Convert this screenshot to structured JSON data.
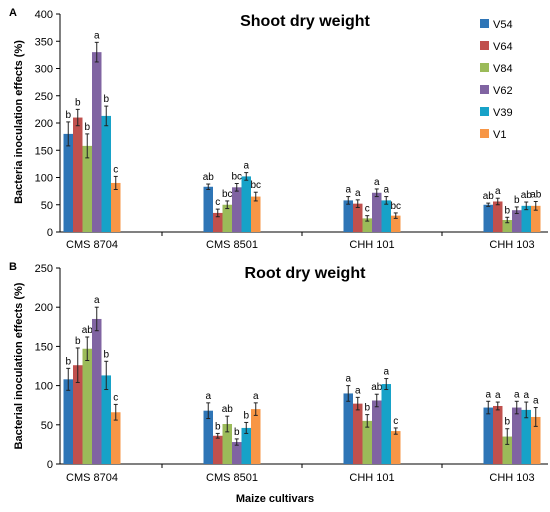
{
  "figure": {
    "shared_xlabel": "Maize cultivars"
  },
  "chart_data": [
    {
      "panel_label": "A",
      "type": "bar",
      "title": "Shoot dry weight",
      "xlabel": "",
      "ylabel": "Bacteria inoculation effects (%)",
      "ylim": [
        0,
        400
      ],
      "yticks": [
        0,
        50,
        100,
        150,
        200,
        250,
        300,
        350,
        400
      ],
      "grid": false,
      "legend": "right",
      "categories": [
        "CMS 8704",
        "CMS 8501",
        "CHH 101",
        "CHH 103"
      ],
      "series": [
        {
          "name": "V54",
          "color": "#2e75b6",
          "values": [
            180,
            83,
            58,
            50
          ],
          "errors": [
            22,
            5,
            7,
            3
          ],
          "labels": [
            "b",
            "ab",
            "a",
            "ab"
          ]
        },
        {
          "name": "V64",
          "color": "#c0504d",
          "values": [
            210,
            35,
            52,
            56
          ],
          "errors": [
            15,
            7,
            7,
            6
          ],
          "labels": [
            "b",
            "c",
            "a",
            "a"
          ]
        },
        {
          "name": "V84",
          "color": "#9bbb59",
          "values": [
            158,
            50,
            25,
            22
          ],
          "errors": [
            22,
            7,
            5,
            5
          ],
          "labels": [
            "b",
            "bc",
            "c",
            "b"
          ]
        },
        {
          "name": "V62",
          "color": "#8064a2",
          "values": [
            330,
            82,
            72,
            40
          ],
          "errors": [
            18,
            7,
            7,
            6
          ],
          "labels": [
            "a",
            "bc",
            "a",
            "b"
          ]
        },
        {
          "name": "V39",
          "color": "#17a2c8",
          "values": [
            213,
            102,
            58,
            48
          ],
          "errors": [
            18,
            7,
            7,
            7
          ],
          "labels": [
            "b",
            "a",
            "a",
            "ab"
          ]
        },
        {
          "name": "V1",
          "color": "#f79646",
          "values": [
            90,
            65,
            30,
            48
          ],
          "errors": [
            12,
            8,
            5,
            8
          ],
          "labels": [
            "c",
            "bc",
            "bc",
            "ab"
          ]
        }
      ]
    },
    {
      "panel_label": "B",
      "type": "bar",
      "title": "Root dry weight",
      "xlabel": "",
      "ylabel": "Bacterial inoculation effects (%)",
      "ylim": [
        0,
        250
      ],
      "yticks": [
        0,
        50,
        100,
        150,
        200,
        250
      ],
      "grid": false,
      "legend": "none",
      "categories": [
        "CMS 8704",
        "CMS 8501",
        "CHH 101",
        "CHH 103"
      ],
      "series": [
        {
          "name": "V54",
          "color": "#2e75b6",
          "values": [
            108,
            68,
            90,
            72
          ],
          "errors": [
            14,
            10,
            10,
            8
          ],
          "labels": [
            "b",
            "a",
            "a",
            "a"
          ]
        },
        {
          "name": "V64",
          "color": "#c0504d",
          "values": [
            126,
            36,
            77,
            74
          ],
          "errors": [
            22,
            3,
            8,
            5
          ],
          "labels": [
            "b",
            "b",
            "a",
            "a"
          ]
        },
        {
          "name": "V84",
          "color": "#9bbb59",
          "values": [
            147,
            51,
            55,
            35
          ],
          "errors": [
            15,
            10,
            8,
            10
          ],
          "labels": [
            "ab",
            "ab",
            "b",
            "b"
          ]
        },
        {
          "name": "V62",
          "color": "#8064a2",
          "values": [
            185,
            28,
            81,
            72
          ],
          "errors": [
            15,
            4,
            8,
            8
          ],
          "labels": [
            "a",
            "b",
            "ab",
            "a"
          ]
        },
        {
          "name": "V39",
          "color": "#17a2c8",
          "values": [
            113,
            46,
            102,
            69
          ],
          "errors": [
            18,
            7,
            7,
            10
          ],
          "labels": [
            "b",
            "b",
            "a",
            "a"
          ]
        },
        {
          "name": "V1",
          "color": "#f79646",
          "values": [
            66,
            70,
            42,
            60
          ],
          "errors": [
            10,
            8,
            4,
            12
          ],
          "labels": [
            "c",
            "a",
            "c",
            "a"
          ]
        }
      ]
    }
  ]
}
